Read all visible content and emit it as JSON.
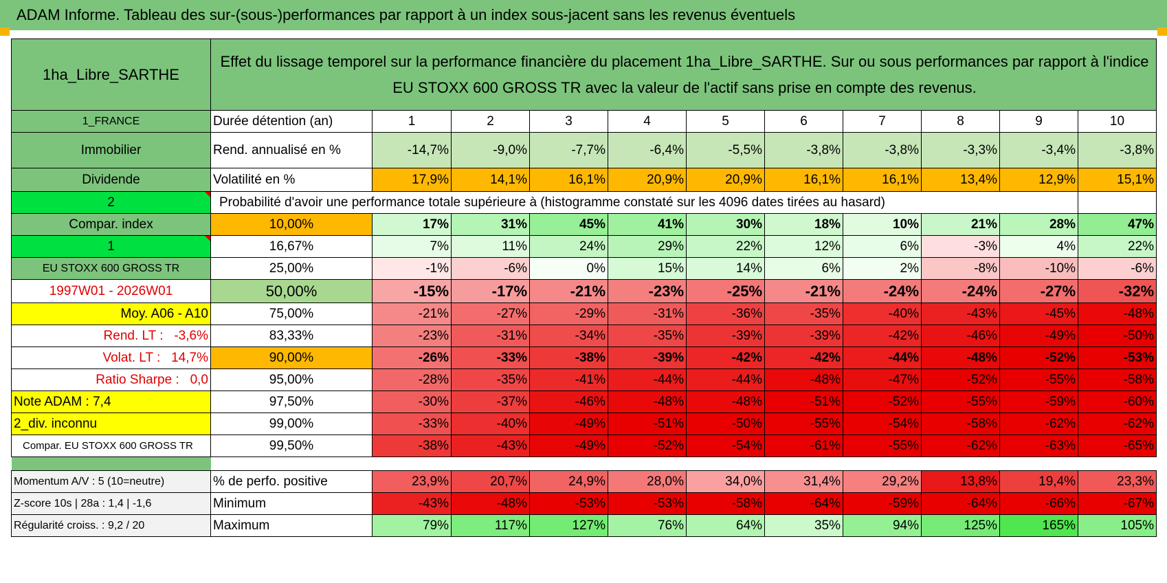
{
  "title": "ADAM Informe. Tableau des sur-(sous-)performances par rapport à un index sous-jacent sans les revenus éventuels",
  "side": {
    "fund": "1ha_Libre_SARTHE",
    "country": "1_FRANCE",
    "asset": "Immobilier",
    "dividend": "Dividende",
    "sel1": "2",
    "compar_index": "Compar. index",
    "sel2": "1",
    "index_name": "EU STOXX 600 GROSS TR",
    "period": "1997W01 - 2026W01",
    "moy": "Moy. A06 - A10",
    "rend_lt_label": "Rend. LT :",
    "rend_lt_value": "-3,6%",
    "volat_lt_label": "Volat. LT :",
    "volat_lt_value": "14,7%",
    "sharpe_label": "Ratio Sharpe :",
    "sharpe_value": "0,0",
    "note": "Note ADAM : 7,4",
    "div_unknown": "2_div. inconnu",
    "compar_full": "Compar. EU STOXX 600 GROSS TR",
    "momentum": "Momentum A/V : 5 (10=neutre)",
    "zscore": "Z-score 10s | 28a : 1,4 | -1,6",
    "regularite": "Régularité croiss. : 9,2 / 20"
  },
  "description": "Effet du lissage temporel sur la performance financière du placement 1ha_Libre_SARTHE. Sur ou sous performances par rapport à l'indice EU STOXX 600 GROSS TR avec la valeur de l'actif sans prise en compte des revenus.",
  "duration_label": "Durée détention (an)",
  "years": [
    "1",
    "2",
    "3",
    "4",
    "5",
    "6",
    "7",
    "8",
    "9",
    "10"
  ],
  "rend_label": "Rend. annualisé en %",
  "rend": [
    "-14,7%",
    "-9,0%",
    "-7,7%",
    "-6,4%",
    "-5,5%",
    "-3,8%",
    "-3,8%",
    "-3,3%",
    "-3,4%",
    "-3,8%"
  ],
  "vol_label": "Volatilité en %",
  "vol": [
    "17,9%",
    "14,1%",
    "16,1%",
    "20,9%",
    "20,9%",
    "16,1%",
    "16,1%",
    "13,4%",
    "12,9%",
    "15,1%"
  ],
  "prob_label": "Probabilité d'avoir une performance totale supérieure à (histogramme constaté sur les 4096 dates tirées au hasard)",
  "quantiles": [
    {
      "p": "10,00%",
      "v": [
        "17%",
        "31%",
        "45%",
        "41%",
        "30%",
        "18%",
        "10%",
        "21%",
        "28%",
        "47%"
      ]
    },
    {
      "p": "16,67%",
      "v": [
        "7%",
        "11%",
        "24%",
        "29%",
        "22%",
        "12%",
        "6%",
        "-3%",
        "4%",
        "22%"
      ]
    },
    {
      "p": "25,00%",
      "v": [
        "-1%",
        "-6%",
        "0%",
        "15%",
        "14%",
        "6%",
        "2%",
        "-8%",
        "-10%",
        "-6%"
      ]
    },
    {
      "p": "50,00%",
      "v": [
        "-15%",
        "-17%",
        "-21%",
        "-23%",
        "-25%",
        "-21%",
        "-24%",
        "-24%",
        "-27%",
        "-32%"
      ]
    },
    {
      "p": "75,00%",
      "v": [
        "-21%",
        "-27%",
        "-29%",
        "-31%",
        "-36%",
        "-35%",
        "-40%",
        "-43%",
        "-45%",
        "-48%"
      ]
    },
    {
      "p": "83,33%",
      "v": [
        "-23%",
        "-31%",
        "-34%",
        "-35%",
        "-39%",
        "-39%",
        "-42%",
        "-46%",
        "-49%",
        "-50%"
      ]
    },
    {
      "p": "90,00%",
      "v": [
        "-26%",
        "-33%",
        "-38%",
        "-39%",
        "-42%",
        "-42%",
        "-44%",
        "-48%",
        "-52%",
        "-53%"
      ]
    },
    {
      "p": "95,00%",
      "v": [
        "-28%",
        "-35%",
        "-41%",
        "-44%",
        "-44%",
        "-48%",
        "-47%",
        "-52%",
        "-55%",
        "-58%"
      ]
    },
    {
      "p": "97,50%",
      "v": [
        "-30%",
        "-37%",
        "-46%",
        "-48%",
        "-48%",
        "-51%",
        "-52%",
        "-55%",
        "-59%",
        "-60%"
      ]
    },
    {
      "p": "99,00%",
      "v": [
        "-33%",
        "-40%",
        "-49%",
        "-51%",
        "-50%",
        "-55%",
        "-54%",
        "-58%",
        "-62%",
        "-62%"
      ]
    },
    {
      "p": "99,50%",
      "v": [
        "-38%",
        "-43%",
        "-49%",
        "-52%",
        "-54%",
        "-61%",
        "-55%",
        "-62%",
        "-63%",
        "-65%"
      ]
    }
  ],
  "pos_label": "% de perfo. positive",
  "pos": [
    "23,9%",
    "20,7%",
    "24,9%",
    "28,0%",
    "34,0%",
    "31,4%",
    "29,2%",
    "13,8%",
    "19,4%",
    "23,3%"
  ],
  "min_label": "Minimum",
  "min": [
    "-43%",
    "-48%",
    "-53%",
    "-53%",
    "-58%",
    "-64%",
    "-59%",
    "-64%",
    "-66%",
    "-67%"
  ],
  "max_label": "Maximum",
  "max": [
    "79%",
    "117%",
    "127%",
    "76%",
    "64%",
    "35%",
    "94%",
    "125%",
    "165%",
    "105%"
  ]
}
